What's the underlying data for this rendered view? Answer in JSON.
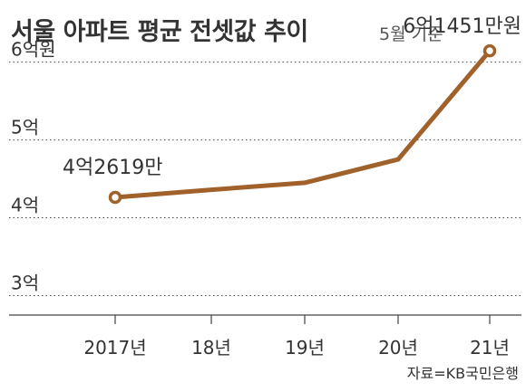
{
  "chart_data": {
    "type": "line",
    "title": "서울 아파트 평균 전셋값 추이",
    "subtitle": "5월 기준",
    "categories": [
      "2017년",
      "18년",
      "19년",
      "20년",
      "21년"
    ],
    "series": [
      {
        "values": [
          4.2619,
          4.36,
          4.45,
          4.75,
          6.1451
        ],
        "color": "#a0612b"
      }
    ],
    "yticks": [
      {
        "value": 3,
        "label": "3억"
      },
      {
        "value": 4,
        "label": "4억"
      },
      {
        "value": 5,
        "label": "5억"
      },
      {
        "value": 6,
        "label": "6억원"
      }
    ],
    "ylim": [
      2.75,
      6.1
    ],
    "grid": true,
    "annotations": [
      {
        "index": 0,
        "label": "4억2619만"
      },
      {
        "index": 4,
        "label": "6억1451만원"
      }
    ],
    "source": "자료=KB국민은행"
  }
}
